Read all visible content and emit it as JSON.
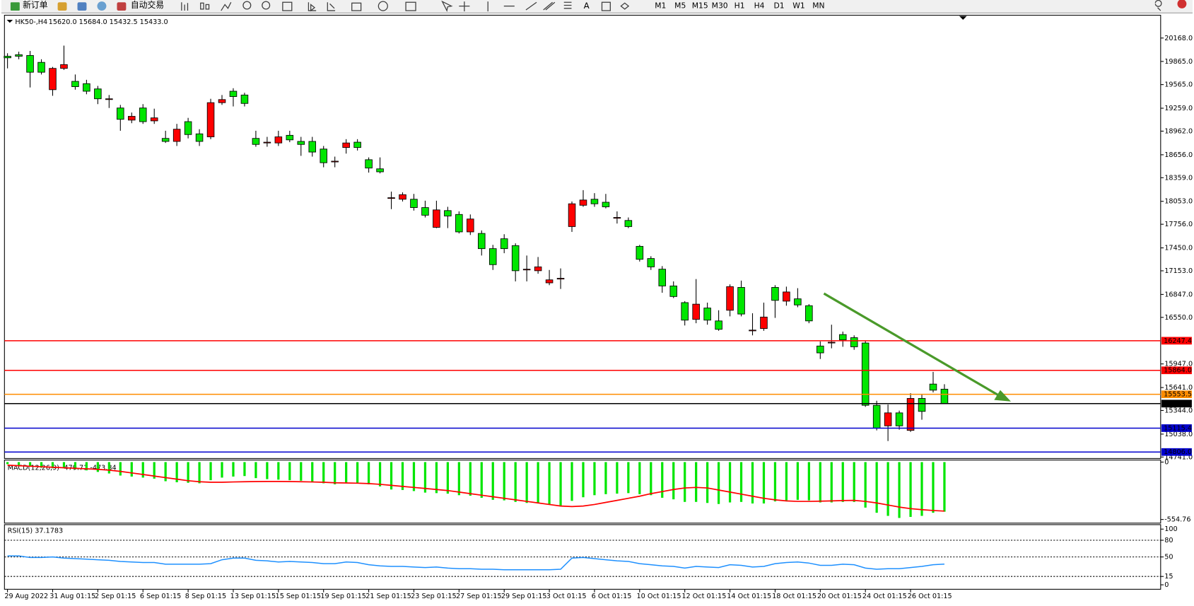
{
  "toolbar": {
    "new_order": "新订单",
    "auto_trading": "自动交易",
    "text_tool": "A",
    "timeframes": [
      "M1",
      "M5",
      "M15",
      "M30",
      "H1",
      "H4",
      "D1",
      "W1",
      "MN"
    ]
  },
  "chart_data": [
    {
      "type": "candlestick",
      "title": "HK50-,H4",
      "subtitle": "15620.0 15684.0 15432.5 15433.0",
      "categories": [
        "29 Aug 2022",
        null,
        null,
        null,
        "31 Aug 01:15",
        null,
        null,
        null,
        "2 Sep 01:15",
        null,
        null,
        null,
        "6 Sep 01:15",
        null,
        null,
        null,
        "8 Sep 01:15",
        null,
        null,
        null,
        "13 Sep 01:15",
        null,
        null,
        null,
        "15 Sep 01:15",
        null,
        null,
        null,
        "19 Sep 01:15",
        null,
        null,
        null,
        "21 Sep 01:15",
        null,
        null,
        null,
        "23 Sep 01:15",
        null,
        null,
        null,
        "27 Sep 01:15",
        null,
        null,
        null,
        "29 Sep 01:15",
        null,
        null,
        null,
        "3 Oct 01:15",
        null,
        null,
        null,
        "6 Oct 01:15",
        null,
        null,
        null,
        "10 Oct 01:15",
        null,
        null,
        null,
        "12 Oct 01:15",
        null,
        null,
        null,
        "14 Oct 01:15",
        null,
        null,
        null,
        "18 Oct 01:15",
        null,
        null,
        null,
        "20 Oct 01:15",
        null,
        null,
        null,
        "24 Oct 01:15",
        null,
        null,
        null,
        "26 Oct 01:15",
        null,
        null,
        null
      ],
      "open": [
        19932,
        19952,
        19942,
        19853,
        19499,
        19775,
        19607,
        19577,
        19509,
        19381,
        19262,
        19105,
        19262,
        19095,
        18868,
        18829,
        19085,
        18927,
        18888,
        19331,
        19479,
        19430,
        18868,
        18819,
        18809,
        18908,
        18829,
        18829,
        18730,
        18573,
        18750,
        18819,
        18592,
        18474,
        18100,
        18080,
        18080,
        17972,
        17716,
        17933,
        17883,
        17657,
        17637,
        17440,
        17568,
        17479,
        17174,
        17154,
        16997,
        17056,
        17726,
        18002,
        18080,
        18041,
        17844,
        17805,
        17470,
        17312,
        17174,
        16957,
        16741,
        16524,
        16671,
        16504,
        16642,
        16938,
        16385,
        16405,
        16938,
        16760,
        16790,
        16701,
        16179,
        16228,
        16327,
        16287,
        16218,
        15411,
        15145,
        15313,
        15086,
        15500,
        15686,
        15620
      ],
      "high": [
        19971,
        19991,
        20001,
        19893,
        19794,
        20070,
        19696,
        19627,
        19548,
        19430,
        19302,
        19203,
        19312,
        19253,
        18967,
        19056,
        19134,
        18987,
        19381,
        19430,
        19518,
        19459,
        18967,
        18888,
        18967,
        18967,
        18888,
        18888,
        18770,
        18632,
        18858,
        18858,
        18622,
        18622,
        18179,
        18169,
        18149,
        18061,
        18061,
        17982,
        17923,
        17883,
        17676,
        17489,
        17627,
        17509,
        17351,
        17332,
        17164,
        17184,
        18051,
        18198,
        18159,
        18149,
        17923,
        17844,
        17489,
        17342,
        17214,
        17016,
        16760,
        17046,
        16741,
        16642,
        16977,
        17026,
        16603,
        16741,
        16967,
        16948,
        16928,
        16721,
        16238,
        16455,
        16366,
        16317,
        16248,
        15470,
        15421,
        15342,
        15568,
        15549,
        15844,
        15684
      ],
      "low": [
        19775,
        19893,
        19528,
        19696,
        19420,
        19755,
        19499,
        19440,
        19312,
        19262,
        18967,
        19065,
        19056,
        19056,
        18809,
        18770,
        18868,
        18770,
        18858,
        19302,
        19282,
        19282,
        18760,
        18760,
        18770,
        18819,
        18642,
        18632,
        18494,
        18494,
        18671,
        18711,
        18425,
        18415,
        17952,
        18051,
        17933,
        17844,
        17706,
        17706,
        17637,
        17617,
        17351,
        17164,
        17381,
        17016,
        17016,
        17115,
        16967,
        16918,
        17657,
        17982,
        17982,
        17962,
        17765,
        17706,
        17273,
        17164,
        16869,
        16800,
        16445,
        16474,
        16455,
        16376,
        16563,
        16563,
        16317,
        16376,
        16543,
        16701,
        16681,
        16474,
        16011,
        16149,
        16169,
        16130,
        15391,
        15086,
        14948,
        15095,
        15066,
        15224,
        15578,
        15432.5
      ],
      "close": [
        19912,
        19932,
        19725,
        19725,
        19775,
        19824,
        19538,
        19479,
        19381,
        19381,
        19115,
        19154,
        19085,
        19134,
        18829,
        18987,
        18918,
        18829,
        19331,
        19371,
        19410,
        19321,
        18790,
        18819,
        18888,
        18849,
        18790,
        18691,
        18553,
        18573,
        18809,
        18750,
        18484,
        18435,
        18100,
        18139,
        17972,
        17873,
        17942,
        17863,
        17657,
        17824,
        17440,
        17233,
        17440,
        17154,
        17174,
        17204,
        17036,
        17056,
        18021,
        18070,
        18021,
        17982,
        17844,
        17726,
        17302,
        17204,
        16957,
        16820,
        16514,
        16721,
        16514,
        16395,
        16948,
        16593,
        16385,
        16554,
        16770,
        16879,
        16711,
        16504,
        16090,
        16228,
        16258,
        16169,
        15411,
        15115,
        15313,
        15145,
        15500,
        15332,
        15607,
        15433
      ],
      "up_color": "#ff0000",
      "down_color": "#00e600",
      "ylim": [
        14722,
        20444
      ],
      "yticks": [
        {
          "value": 20168,
          "label": "20168.0"
        },
        {
          "value": 19865,
          "label": "19865.0"
        },
        {
          "value": 19565,
          "label": "19565.0"
        },
        {
          "value": 19259,
          "label": "19259.0"
        },
        {
          "value": 18962,
          "label": "18962.0"
        },
        {
          "value": 18656,
          "label": "18656.0"
        },
        {
          "value": 18359,
          "label": "18359.0"
        },
        {
          "value": 18053,
          "label": "18053.0"
        },
        {
          "value": 17756,
          "label": "17756.0"
        },
        {
          "value": 17450,
          "label": "17450.0"
        },
        {
          "value": 17153,
          "label": "17153.0"
        },
        {
          "value": 16847,
          "label": "16847.0"
        },
        {
          "value": 16550,
          "label": "16550.0"
        },
        {
          "value": 15947,
          "label": "15947.0"
        },
        {
          "value": 15641,
          "label": "15641.0"
        },
        {
          "value": 15344,
          "label": "15344.0"
        },
        {
          "value": 15038,
          "label": "15038.0"
        },
        {
          "value": 14741,
          "label": "14741.0"
        }
      ],
      "hlines": [
        {
          "value": 16247.4,
          "color": "#ff0000"
        },
        {
          "value": 15864,
          "label": "15864.0",
          "color": "#ff0000"
        },
        {
          "value": 15553.5,
          "color": "#ff8c00"
        },
        {
          "value": 15433,
          "label": "15433.0",
          "color": "#000000"
        },
        {
          "value": 15115.4,
          "color": "#0000cd"
        },
        {
          "value": 14806,
          "label": "14806.0",
          "color": "#0000cd"
        }
      ]
    },
    {
      "type": "macd",
      "title": "MACD(12,26,9) -479.71 -473.84",
      "histogram": [
        -20,
        -30,
        -40,
        -55,
        -60,
        -60,
        -70,
        -80,
        -95,
        -110,
        -130,
        -140,
        -150,
        -160,
        -185,
        -195,
        -200,
        -205,
        -175,
        -150,
        -140,
        -135,
        -155,
        -165,
        -170,
        -175,
        -180,
        -190,
        -205,
        -215,
        -205,
        -200,
        -215,
        -235,
        -265,
        -270,
        -280,
        -295,
        -300,
        -305,
        -320,
        -325,
        -345,
        -365,
        -370,
        -385,
        -395,
        -400,
        -410,
        -420,
        -375,
        -340,
        -320,
        -310,
        -305,
        -300,
        -310,
        -320,
        -345,
        -360,
        -385,
        -385,
        -395,
        -405,
        -390,
        -385,
        -400,
        -400,
        -380,
        -370,
        -365,
        -370,
        -390,
        -390,
        -385,
        -385,
        -440,
        -490,
        -520,
        -540,
        -530,
        -520,
        -490,
        -479.71
      ],
      "signal": [
        -30,
        -35,
        -40,
        -45,
        -50,
        -55,
        -60,
        -65,
        -70,
        -78,
        -90,
        -105,
        -120,
        -135,
        -150,
        -165,
        -180,
        -190,
        -195,
        -195,
        -192,
        -190,
        -188,
        -187,
        -187,
        -188,
        -190,
        -192,
        -195,
        -200,
        -202,
        -204,
        -208,
        -215,
        -225,
        -235,
        -245,
        -255,
        -265,
        -275,
        -290,
        -305,
        -320,
        -335,
        -350,
        -365,
        -380,
        -395,
        -410,
        -425,
        -430,
        -425,
        -410,
        -390,
        -370,
        -350,
        -330,
        -305,
        -285,
        -265,
        -250,
        -245,
        -250,
        -270,
        -290,
        -310,
        -330,
        -350,
        -365,
        -375,
        -380,
        -380,
        -378,
        -375,
        -372,
        -370,
        -380,
        -395,
        -415,
        -435,
        -450,
        -460,
        -468,
        -473.84
      ],
      "hist_color": "#00e600",
      "signal_color": "#ff0000",
      "ylim": [
        -590,
        20
      ],
      "yticks": [
        0,
        -554.76
      ]
    },
    {
      "type": "line",
      "title": "RSI(15) 37.1783",
      "values": [
        52,
        52,
        49,
        49,
        50,
        48,
        47,
        46,
        45,
        44,
        42,
        41,
        40,
        40,
        37,
        37,
        37,
        37,
        38,
        45,
        48,
        48,
        44,
        43,
        41,
        42,
        41,
        40,
        38,
        38,
        41,
        40,
        36,
        34,
        33,
        33,
        32,
        31,
        32,
        30,
        29,
        29,
        28,
        28,
        27,
        27,
        27,
        27,
        27,
        28,
        48,
        49,
        47,
        45,
        43,
        42,
        38,
        36,
        34,
        33,
        30,
        33,
        32,
        31,
        36,
        35,
        32,
        33,
        38,
        40,
        41,
        39,
        35,
        35,
        37,
        36,
        30,
        28,
        29,
        29,
        31,
        33,
        36,
        37.1783
      ],
      "color": "#1e90ff",
      "ylim": [
        -8,
        108
      ],
      "yticks": [
        100,
        80,
        50,
        15,
        0
      ],
      "levels": [
        80,
        50,
        15
      ]
    }
  ]
}
